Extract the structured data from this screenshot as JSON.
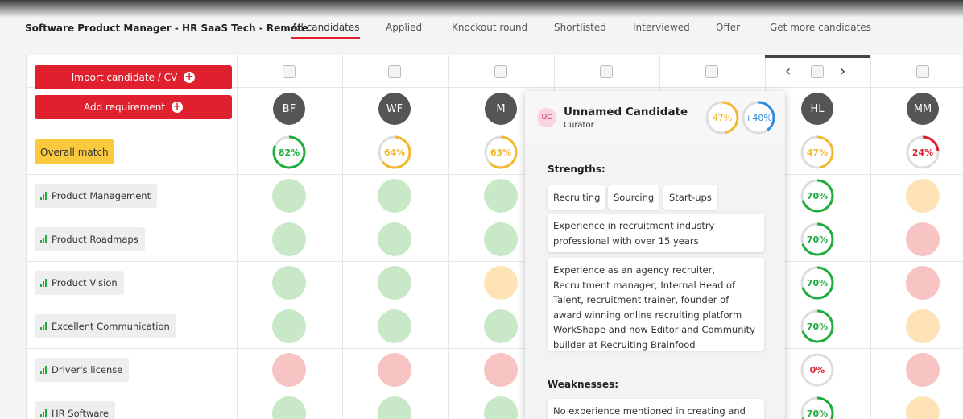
{
  "header": {
    "title": "Software Product Manager - HR SaaS Tech - Remote",
    "tabs": [
      {
        "label": "All candidates",
        "active": true
      },
      {
        "label": "Applied",
        "active": false
      },
      {
        "label": "Knockout round",
        "active": false
      },
      {
        "label": "Shortlisted",
        "active": false
      },
      {
        "label": "Interviewed",
        "active": false
      },
      {
        "label": "Offer",
        "active": false
      },
      {
        "label": "Get more candidates",
        "active": false
      }
    ]
  },
  "actions": {
    "import": "Import candidate / CV",
    "add": "Add requirement"
  },
  "overall_label": "Overall match",
  "requirements": [
    "Product Management",
    "Product Roadmaps",
    "Product Vision",
    "Excellent Communication",
    "Driver's license",
    "HR Software"
  ],
  "candidates": [
    {
      "initials": "BF",
      "overall": {
        "value": 82,
        "label": "82%"
      },
      "color": "#1fae3c",
      "scores": [
        {
          "color": "#c8e8c8"
        },
        {
          "color": "#c8e8c8"
        },
        {
          "color": "#c8e8c8"
        },
        {
          "color": "#c8e8c8"
        },
        {
          "color": "#f8c3c3"
        },
        {
          "color": "#c8e8c8"
        }
      ]
    },
    {
      "initials": "WF",
      "overall": {
        "value": 64,
        "label": "64%"
      },
      "color": "#f2b92e",
      "scores": [
        {
          "color": "#c8e8c8"
        },
        {
          "color": "#c8e8c8"
        },
        {
          "color": "#c8e8c8"
        },
        {
          "color": "#c8e8c8"
        },
        {
          "color": "#f8c3c3"
        },
        {
          "color": "#c8e8c8"
        }
      ]
    },
    {
      "initials": "M",
      "overall": {
        "value": 63,
        "label": "63%"
      },
      "color": "#f2b92e",
      "scores": [
        {
          "color": "#c8e8c8"
        },
        {
          "color": "#c8e8c8"
        },
        {
          "color": "#fde3b6"
        },
        {
          "color": "#c8e8c8"
        },
        {
          "color": "#f8c3c3"
        },
        {
          "color": "#c8e8c8"
        }
      ]
    },
    {
      "initials": "HL",
      "overall": {
        "value": 47,
        "label": "47%"
      },
      "color": "#f2b92e",
      "scores": [
        {
          "value": 70,
          "label": "70%",
          "color": "#1fae3c"
        },
        {
          "value": 70,
          "label": "70%",
          "color": "#1fae3c"
        },
        {
          "value": 70,
          "label": "70%",
          "color": "#1fae3c"
        },
        {
          "value": 70,
          "label": "70%",
          "color": "#1fae3c"
        },
        {
          "value": 0,
          "label": "0%",
          "color": "#e0202e"
        },
        {
          "value": 70,
          "label": "70%",
          "color": "#1fae3c"
        }
      ]
    },
    {
      "initials": "MM",
      "overall": {
        "value": 24,
        "label": "24%"
      },
      "color": "#e0202e",
      "scores": [
        {
          "color": "#fde3b6"
        },
        {
          "color": "#f8c3c3"
        },
        {
          "color": "#f8c3c3"
        },
        {
          "color": "#fde3b6"
        },
        {
          "color": "#f8c3c3"
        },
        {
          "color": "#fde3b6"
        }
      ]
    }
  ],
  "popup": {
    "initials": "UC",
    "name": "Unnamed Candidate",
    "role": "Curator",
    "match": {
      "value": 47,
      "label": "47%",
      "color": "#f2b92e"
    },
    "delta": {
      "value": 40,
      "label": "+40%",
      "color": "#2a8de0"
    },
    "strengths_title": "Strengths:",
    "tags": [
      "Recruiting",
      "Sourcing",
      "Start-ups"
    ],
    "strengths": [
      "Experience in recruitment industry professional with over 15 years",
      "Experience as an agency recruiter, Recruitment manager, Internal Head of Talent, recruitment trainer, founder of award winning online recruiting platform WorkShape and now Editor and Community builder at Recruiting Brainfood"
    ],
    "weaknesses_title": "Weaknesses:",
    "weaknesses": [
      "No experience mentioned in creating and"
    ]
  }
}
